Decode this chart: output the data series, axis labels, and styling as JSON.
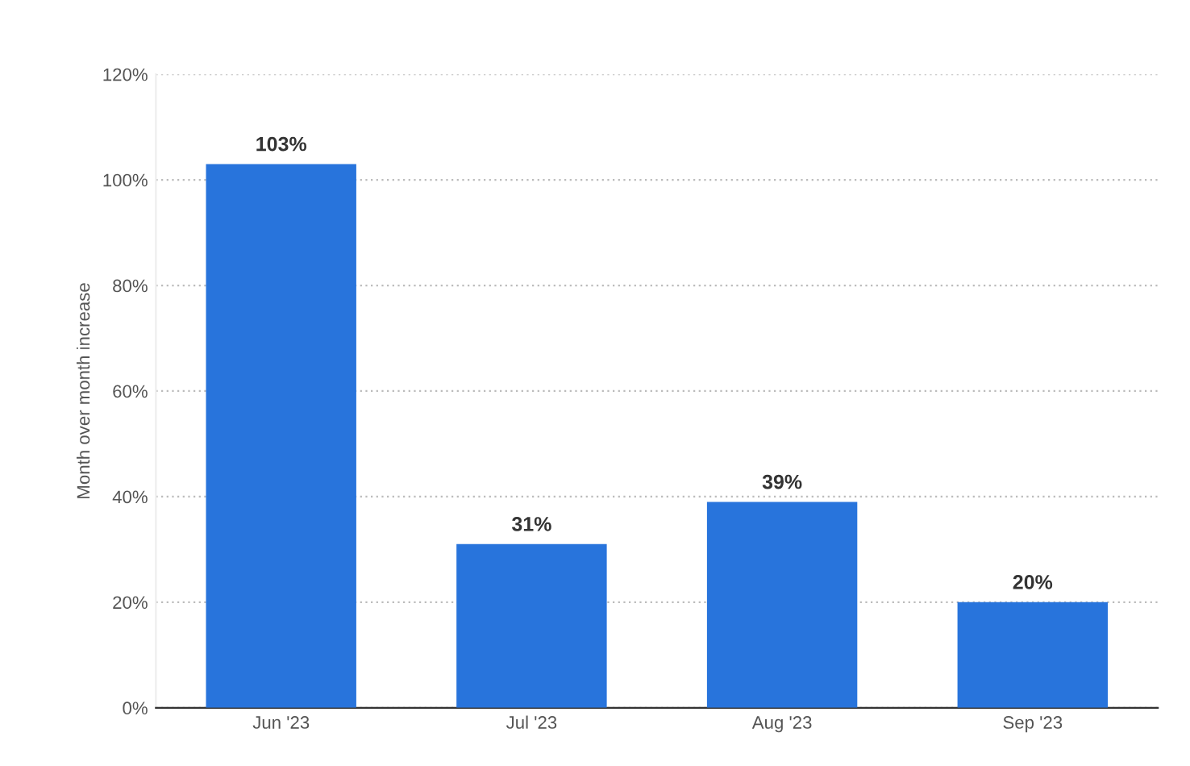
{
  "chart_data": {
    "type": "bar",
    "ylabel": "Month over month increase",
    "categories": [
      "Jun '23",
      "Jul '23",
      "Aug '23",
      "Sep '23"
    ],
    "values": [
      103,
      31,
      39,
      20
    ],
    "value_labels": [
      "103%",
      "31%",
      "39%",
      "20%"
    ],
    "color": "#2874dc",
    "ylim": [
      0,
      120
    ],
    "yticks": [
      {
        "value": 0,
        "label": "0%"
      },
      {
        "value": 20,
        "label": "20%"
      },
      {
        "value": 40,
        "label": "40%"
      },
      {
        "value": 60,
        "label": "60%"
      },
      {
        "value": 80,
        "label": "80%"
      },
      {
        "value": 100,
        "label": "100%"
      },
      {
        "value": 120,
        "label": "120%"
      }
    ],
    "grid": "y"
  }
}
